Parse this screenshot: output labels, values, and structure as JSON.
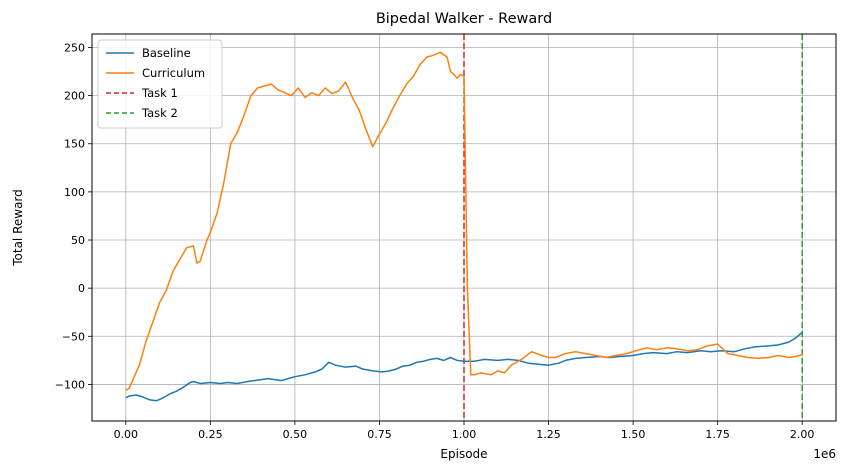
{
  "chart_data": {
    "type": "line",
    "title": "Bipedal Walker - Reward",
    "xlabel": "Episode",
    "ylabel": "Total Reward",
    "x_offset_label": "1e6",
    "xlim": [
      -0.1,
      2.1
    ],
    "ylim": [
      -138,
      264
    ],
    "xticks": [
      0.0,
      0.25,
      0.5,
      0.75,
      1.0,
      1.25,
      1.5,
      1.75,
      2.0
    ],
    "xtick_labels": [
      "0.00",
      "0.25",
      "0.50",
      "0.75",
      "1.00",
      "1.25",
      "1.50",
      "1.75",
      "2.00"
    ],
    "yticks": [
      -100,
      -50,
      0,
      50,
      100,
      150,
      200,
      250
    ],
    "ytick_labels": [
      "−100",
      "−50",
      "0",
      "50",
      "100",
      "150",
      "200",
      "250"
    ],
    "grid": true,
    "legend_position": "top-left",
    "series": [
      {
        "name": "Baseline",
        "color": "#1f77b4",
        "style": "solid",
        "x": [
          0.0,
          0.01,
          0.03,
          0.05,
          0.07,
          0.09,
          0.11,
          0.13,
          0.15,
          0.17,
          0.19,
          0.2,
          0.22,
          0.25,
          0.28,
          0.3,
          0.33,
          0.36,
          0.38,
          0.4,
          0.42,
          0.44,
          0.46,
          0.48,
          0.5,
          0.53,
          0.56,
          0.58,
          0.6,
          0.62,
          0.65,
          0.68,
          0.7,
          0.73,
          0.76,
          0.78,
          0.8,
          0.82,
          0.84,
          0.86,
          0.88,
          0.9,
          0.92,
          0.94,
          0.96,
          0.98,
          1.0,
          1.03,
          1.06,
          1.1,
          1.13,
          1.16,
          1.19,
          1.22,
          1.25,
          1.28,
          1.3,
          1.33,
          1.36,
          1.4,
          1.43,
          1.46,
          1.5,
          1.53,
          1.56,
          1.6,
          1.63,
          1.66,
          1.7,
          1.73,
          1.76,
          1.8,
          1.83,
          1.86,
          1.9,
          1.93,
          1.96,
          1.98,
          2.0
        ],
        "y": [
          -114,
          -112,
          -111,
          -113,
          -116,
          -117,
          -114,
          -110,
          -107,
          -103,
          -98,
          -97,
          -99,
          -98,
          -99,
          -98,
          -99,
          -97,
          -96,
          -95,
          -94,
          -95,
          -96,
          -94,
          -92,
          -90,
          -87,
          -84,
          -77,
          -80,
          -82,
          -81,
          -84,
          -86,
          -87,
          -86,
          -84,
          -81,
          -80,
          -77,
          -76,
          -74,
          -73,
          -75,
          -72,
          -75,
          -76,
          -76,
          -74,
          -75,
          -74,
          -75,
          -78,
          -79,
          -80,
          -78,
          -75,
          -73,
          -72,
          -71,
          -72,
          -71,
          -70,
          -68,
          -67,
          -68,
          -66,
          -67,
          -65,
          -66,
          -65,
          -66,
          -63,
          -61,
          -60,
          -59,
          -56,
          -52,
          -46
        ]
      },
      {
        "name": "Curriculum",
        "color": "#ff7f0e",
        "style": "solid",
        "x": [
          0.0,
          0.01,
          0.02,
          0.04,
          0.06,
          0.08,
          0.1,
          0.12,
          0.14,
          0.16,
          0.18,
          0.2,
          0.21,
          0.22,
          0.24,
          0.25,
          0.27,
          0.29,
          0.31,
          0.33,
          0.35,
          0.37,
          0.39,
          0.41,
          0.43,
          0.45,
          0.47,
          0.49,
          0.51,
          0.53,
          0.55,
          0.57,
          0.59,
          0.61,
          0.63,
          0.65,
          0.67,
          0.69,
          0.71,
          0.73,
          0.75,
          0.77,
          0.79,
          0.81,
          0.83,
          0.85,
          0.87,
          0.89,
          0.91,
          0.93,
          0.95,
          0.96,
          0.97,
          0.98,
          0.99,
          1.0,
          1.01,
          1.02,
          1.03,
          1.05,
          1.08,
          1.1,
          1.12,
          1.14,
          1.17,
          1.2,
          1.23,
          1.25,
          1.27,
          1.3,
          1.33,
          1.36,
          1.39,
          1.42,
          1.45,
          1.48,
          1.51,
          1.54,
          1.57,
          1.6,
          1.63,
          1.66,
          1.69,
          1.72,
          1.75,
          1.78,
          1.81,
          1.84,
          1.87,
          1.9,
          1.93,
          1.96,
          1.98,
          2.0
        ],
        "y": [
          -106,
          -104,
          -96,
          -80,
          -55,
          -35,
          -15,
          -2,
          18,
          30,
          42,
          44,
          26,
          28,
          50,
          58,
          78,
          110,
          150,
          162,
          180,
          200,
          208,
          210,
          212,
          206,
          203,
          200,
          208,
          198,
          203,
          200,
          208,
          202,
          205,
          214,
          198,
          185,
          165,
          147,
          160,
          172,
          187,
          200,
          212,
          220,
          232,
          240,
          242,
          245,
          240,
          225,
          222,
          218,
          222,
          220,
          0,
          -90,
          -90,
          -88,
          -90,
          -86,
          -88,
          -80,
          -74,
          -66,
          -70,
          -72,
          -72,
          -68,
          -66,
          -68,
          -70,
          -72,
          -70,
          -68,
          -65,
          -62,
          -64,
          -62,
          -63,
          -65,
          -64,
          -60,
          -58,
          -68,
          -70,
          -72,
          -73,
          -72,
          -70,
          -72,
          -71,
          -69
        ]
      }
    ],
    "vlines": [
      {
        "name": "Task 1",
        "x": 1.0,
        "color": "#d62728",
        "style": "dashed"
      },
      {
        "name": "Task 2",
        "x": 2.0,
        "color": "#2ca02c",
        "style": "dashed"
      }
    ]
  }
}
